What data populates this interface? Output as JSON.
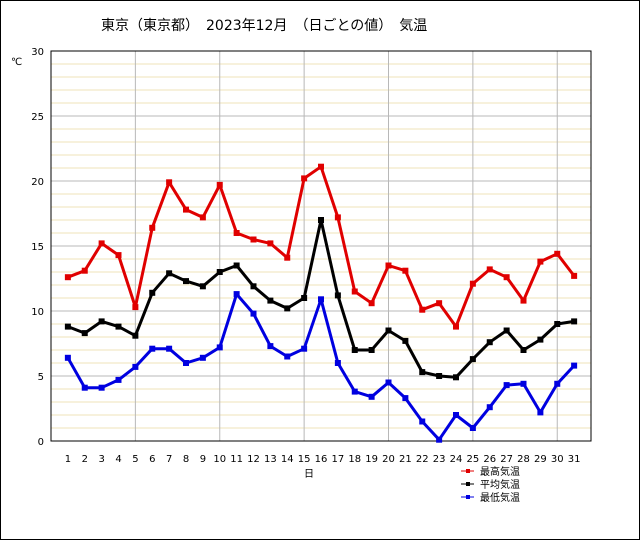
{
  "chart_data": {
    "type": "line",
    "title": "東京（東京都）　2023年12月　（日ごとの値）　気温",
    "xlabel": "日",
    "ylabel": "℃",
    "ylim": [
      0,
      30
    ],
    "yticks": [
      0,
      5,
      10,
      15,
      20,
      25,
      30
    ],
    "x": [
      1,
      2,
      3,
      4,
      5,
      6,
      7,
      8,
      9,
      10,
      11,
      12,
      13,
      14,
      15,
      16,
      17,
      18,
      19,
      20,
      21,
      22,
      23,
      24,
      25,
      26,
      27,
      28,
      29,
      30,
      31
    ],
    "series": [
      {
        "name": "最高気温",
        "color": "#e00000",
        "values": [
          12.6,
          13.1,
          15.2,
          14.3,
          10.3,
          16.4,
          19.9,
          17.8,
          17.2,
          19.7,
          16.0,
          15.5,
          15.2,
          14.1,
          20.2,
          21.1,
          17.2,
          11.5,
          10.6,
          13.5,
          13.1,
          10.1,
          10.6,
          8.8,
          12.1,
          13.2,
          12.6,
          10.8,
          13.8,
          14.4,
          12.7
        ]
      },
      {
        "name": "平均気温",
        "color": "#000000",
        "values": [
          8.8,
          8.3,
          9.2,
          8.8,
          8.1,
          11.4,
          12.9,
          12.3,
          11.9,
          13.0,
          13.5,
          11.9,
          10.8,
          10.2,
          11.0,
          17.0,
          11.2,
          7.0,
          7.0,
          8.5,
          7.7,
          5.3,
          5.0,
          4.9,
          6.3,
          7.6,
          8.5,
          7.0,
          7.8,
          9.0,
          9.2
        ]
      },
      {
        "name": "最低気温",
        "color": "#0000e0",
        "values": [
          6.4,
          4.1,
          4.1,
          4.7,
          5.7,
          7.1,
          7.1,
          6.0,
          6.4,
          7.2,
          11.3,
          9.8,
          7.3,
          6.5,
          7.1,
          10.9,
          6.0,
          3.8,
          3.4,
          4.5,
          3.3,
          1.5,
          0.1,
          2.0,
          1.0,
          2.6,
          4.3,
          4.4,
          2.2,
          4.4,
          5.8
        ]
      }
    ],
    "grid": true,
    "legend": "bottom-right"
  }
}
